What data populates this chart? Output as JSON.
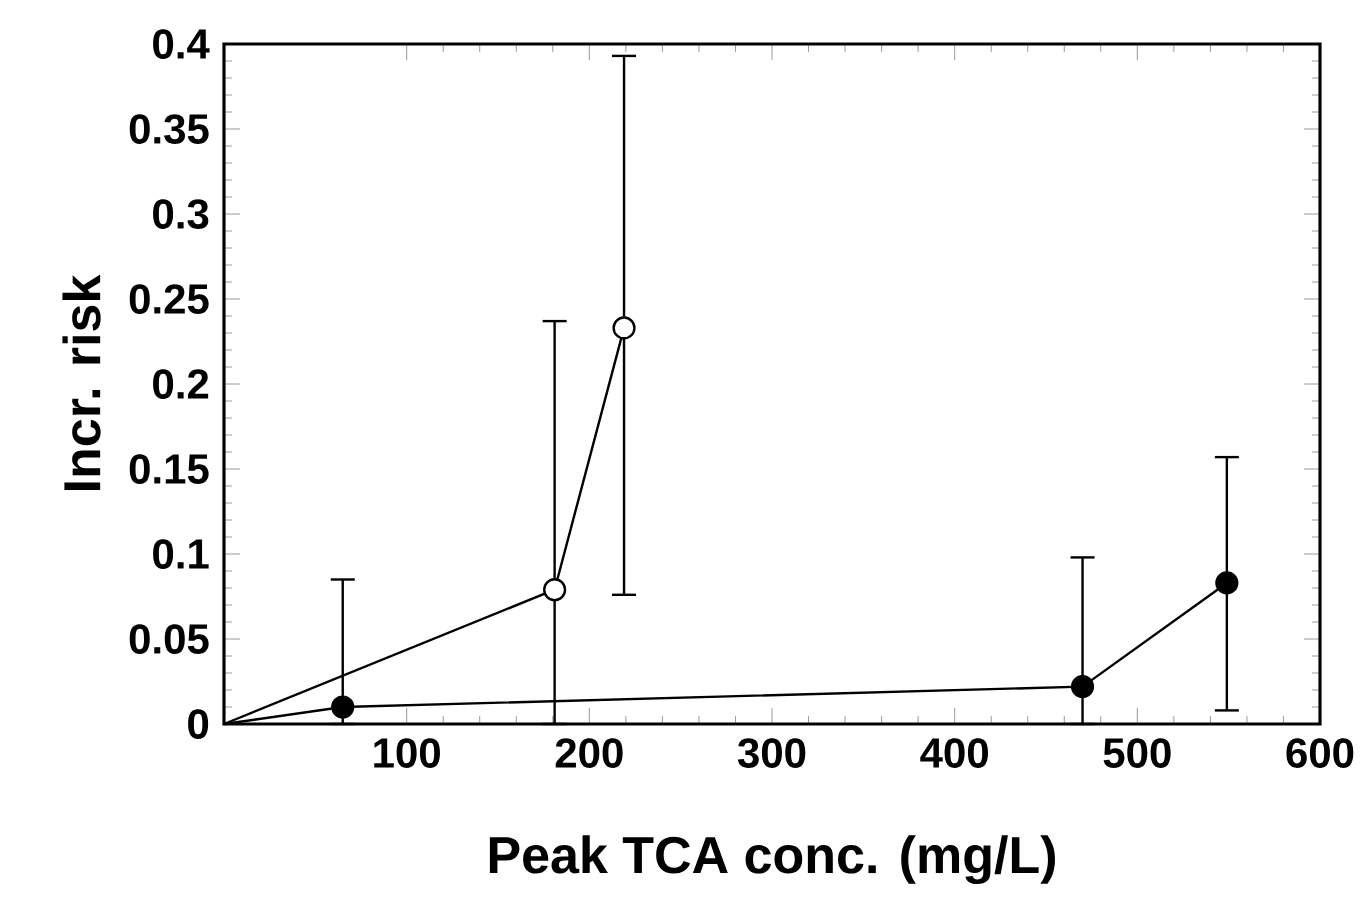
{
  "chart_data": {
    "type": "line",
    "xlabel": "Peak TCA conc. (mg/L)",
    "ylabel": "Incr. risk",
    "xlim": [
      0,
      600
    ],
    "xticks": [
      100,
      200,
      300,
      400,
      500,
      600
    ],
    "ylim": [
      0,
      0.4
    ],
    "yticks": [
      0,
      0.05,
      0.1,
      0.15,
      0.2,
      0.25,
      0.3,
      0.35,
      0.4
    ],
    "marker": "circle",
    "line_style": "solid",
    "series": [
      {
        "color": "#000000",
        "x": [
          0,
          65,
          470,
          549
        ],
        "values": [
          0,
          0.01,
          0.022,
          0.083
        ],
        "errors": [
          null,
          [
            0,
            0.085
          ],
          [
            0,
            0.098
          ],
          [
            0.008,
            0.157
          ]
        ]
      },
      {
        "color": "#000000",
        "x": [
          0,
          181,
          219
        ],
        "values": [
          0,
          0.079,
          0.233
        ],
        "errors": [
          null,
          [
            0,
            0.237
          ],
          [
            0.076,
            0.393
          ]
        ]
      }
    ]
  }
}
